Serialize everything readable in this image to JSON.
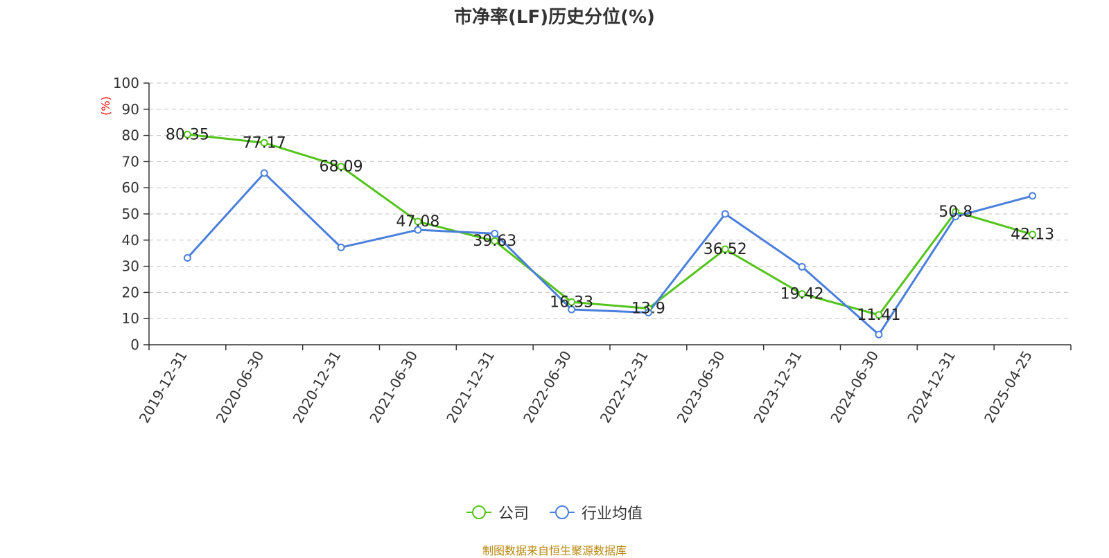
{
  "chart_data": {
    "type": "line",
    "title": "市净率(LF)历史分位(%)",
    "ylabel": "(%)",
    "xlabel": "",
    "ylim": [
      0,
      100
    ],
    "y_ticks": [
      0,
      10,
      20,
      30,
      40,
      50,
      60,
      70,
      80,
      90,
      100
    ],
    "grid": true,
    "legend_position": "bottom-center",
    "categories": [
      "2019-12-31",
      "2020-06-30",
      "2020-12-31",
      "2021-06-30",
      "2021-12-31",
      "2022-06-30",
      "2022-12-31",
      "2023-06-30",
      "2023-12-31",
      "2024-06-30",
      "2024-12-31",
      "2025-04-25"
    ],
    "series": [
      {
        "name": "公司",
        "color": "#52c41a",
        "values": [
          80.35,
          77.17,
          68.09,
          47.08,
          39.63,
          16.33,
          13.9,
          36.52,
          19.42,
          11.41,
          50.8,
          42.13
        ],
        "data_labels": [
          "80.35",
          "77.17",
          "68.09",
          "47.08",
          "39.63",
          "16.33",
          "13.9",
          "36.52",
          "19.42",
          "11.41",
          "50.8",
          "42.13"
        ]
      },
      {
        "name": "行业均值",
        "color": "#4a7fdc",
        "values": [
          33.2,
          65.6,
          37.2,
          43.9,
          42.5,
          13.5,
          12.3,
          50.0,
          29.8,
          3.9,
          49.0,
          56.9
        ]
      }
    ],
    "source": "制图数据来自恒生聚源数据库"
  }
}
